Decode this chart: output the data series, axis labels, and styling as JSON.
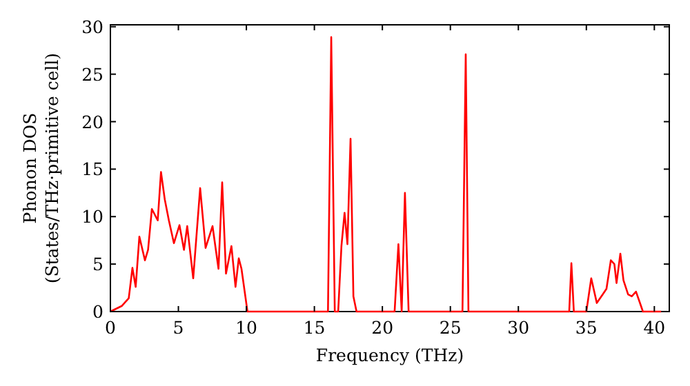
{
  "chart_data": {
    "type": "line",
    "xlabel": "Frequency (THz)",
    "ylabel": "Phonon DOS\n(States/THz·primitive cell)",
    "xlim": [
      0,
      41.1
    ],
    "ylim": [
      0,
      30.2
    ],
    "xticks": [
      0,
      5,
      10,
      15,
      20,
      25,
      30,
      35,
      40
    ],
    "yticks": [
      0,
      5,
      10,
      15,
      20,
      25,
      30
    ],
    "grid": false,
    "marker": "none",
    "line_style": "solid",
    "series": [
      {
        "color": "#ff0000",
        "x": [
          0,
          0.85,
          1.35,
          1.62,
          1.86,
          2.13,
          2.54,
          2.77,
          3.05,
          3.48,
          3.72,
          4.0,
          4.3,
          4.67,
          5.08,
          5.41,
          5.65,
          6.09,
          6.6,
          7.0,
          7.51,
          7.95,
          8.22,
          8.5,
          8.9,
          9.2,
          9.44,
          9.64,
          10.08,
          16.0,
          16.24,
          16.5,
          16.75,
          16.99,
          17.22,
          17.43,
          17.66,
          17.87,
          18.1,
          20.9,
          21.18,
          21.42,
          21.66,
          21.93,
          25.89,
          26.13,
          26.33,
          33.74,
          33.9,
          34.08,
          35.0,
          35.36,
          35.77,
          36.2,
          36.48,
          36.8,
          37.06,
          37.22,
          37.5,
          37.73,
          38.07,
          38.34,
          38.65,
          38.92,
          39.16,
          40.5
        ],
        "values": [
          0,
          0.6,
          1.4,
          4.6,
          2.6,
          7.9,
          5.4,
          6.5,
          10.8,
          9.6,
          14.7,
          11.8,
          9.6,
          7.2,
          9.1,
          6.5,
          9.0,
          3.5,
          13.0,
          6.7,
          9.0,
          4.5,
          13.6,
          4.0,
          6.9,
          2.6,
          5.6,
          4.5,
          0,
          0,
          28.9,
          0,
          0,
          6.9,
          10.4,
          7.1,
          18.2,
          1.6,
          0,
          0,
          7.1,
          0,
          12.5,
          0,
          0,
          27.1,
          0,
          0,
          5.1,
          0,
          0,
          3.5,
          0.9,
          1.8,
          2.4,
          5.4,
          5.0,
          3.0,
          6.1,
          3.3,
          1.8,
          1.6,
          2.1,
          1.0,
          0,
          0
        ]
      }
    ]
  }
}
